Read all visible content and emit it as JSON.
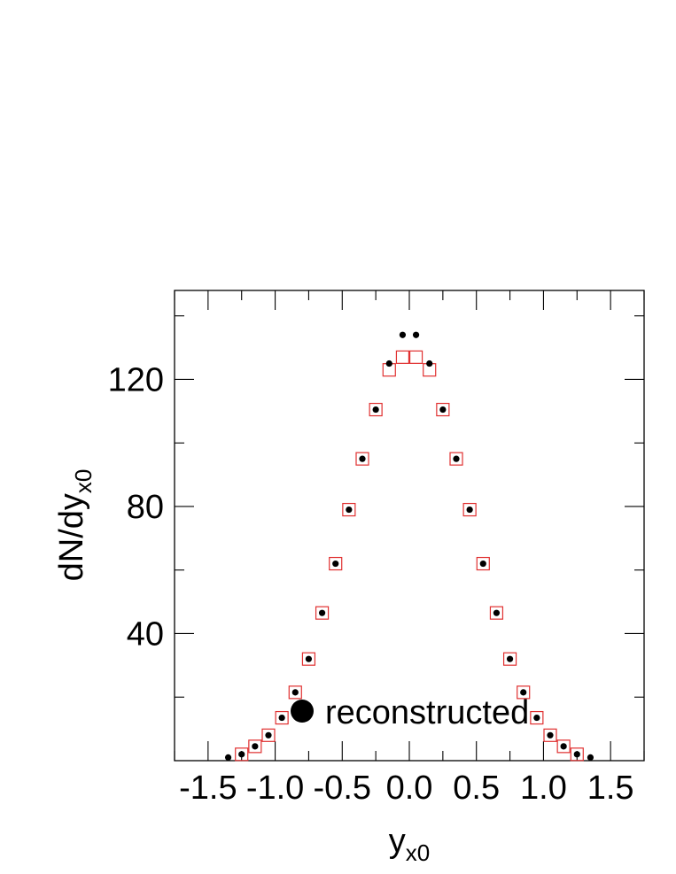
{
  "chart_data": {
    "type": "scatter",
    "xlabel_main": "y",
    "xlabel_sub": "x0",
    "ylabel_main": "dN/dy",
    "ylabel_sub": "x0",
    "xlim": [
      -1.75,
      1.75
    ],
    "ylim": [
      0,
      148
    ],
    "x_ticks": [
      -1.5,
      -1.0,
      -0.5,
      0.0,
      0.5,
      1.0,
      1.5
    ],
    "x_tick_labels": [
      "-1.5",
      "-1.0",
      "-0.5",
      "0.0",
      "0.5",
      "1.0",
      "1.5"
    ],
    "y_ticks": [
      40,
      80,
      120
    ],
    "y_tick_labels": [
      "40",
      "80",
      "120"
    ],
    "legend": {
      "label": "reconstructed",
      "placement": "bottom-center"
    },
    "series": [
      {
        "name": "reconstructed",
        "marker": "filled-circle",
        "color": "#000000",
        "x": [
          -1.35,
          -1.25,
          -1.15,
          -1.05,
          -0.95,
          -0.85,
          -0.75,
          -0.65,
          -0.55,
          -0.45,
          -0.35,
          -0.25,
          -0.15,
          -0.05,
          0.05,
          0.15,
          0.25,
          0.35,
          0.45,
          0.55,
          0.65,
          0.75,
          0.85,
          0.95,
          1.05,
          1.15,
          1.25,
          1.35
        ],
        "y": [
          1,
          2,
          4.5,
          8,
          13.5,
          21.5,
          32,
          46.5,
          62,
          79,
          95,
          110.5,
          125,
          134,
          134,
          125,
          110.5,
          95,
          79,
          62,
          46.5,
          32,
          21.5,
          13.5,
          8,
          4.5,
          2,
          1
        ]
      },
      {
        "marker": "open-square",
        "color": "#e03030",
        "x": [
          -1.25,
          -1.15,
          -1.05,
          -0.95,
          -0.85,
          -0.75,
          -0.65,
          -0.55,
          -0.45,
          -0.35,
          -0.25,
          -0.15,
          -0.05,
          0.05,
          0.15,
          0.25,
          0.35,
          0.45,
          0.55,
          0.65,
          0.75,
          0.85,
          0.95,
          1.05,
          1.15,
          1.25
        ],
        "y": [
          2,
          4.5,
          8,
          13.5,
          21.5,
          32,
          46.5,
          62,
          79,
          95,
          110.5,
          123,
          127,
          127,
          123,
          110.5,
          95,
          79,
          62,
          46.5,
          32,
          21.5,
          13.5,
          8,
          4.5,
          2
        ]
      }
    ]
  }
}
